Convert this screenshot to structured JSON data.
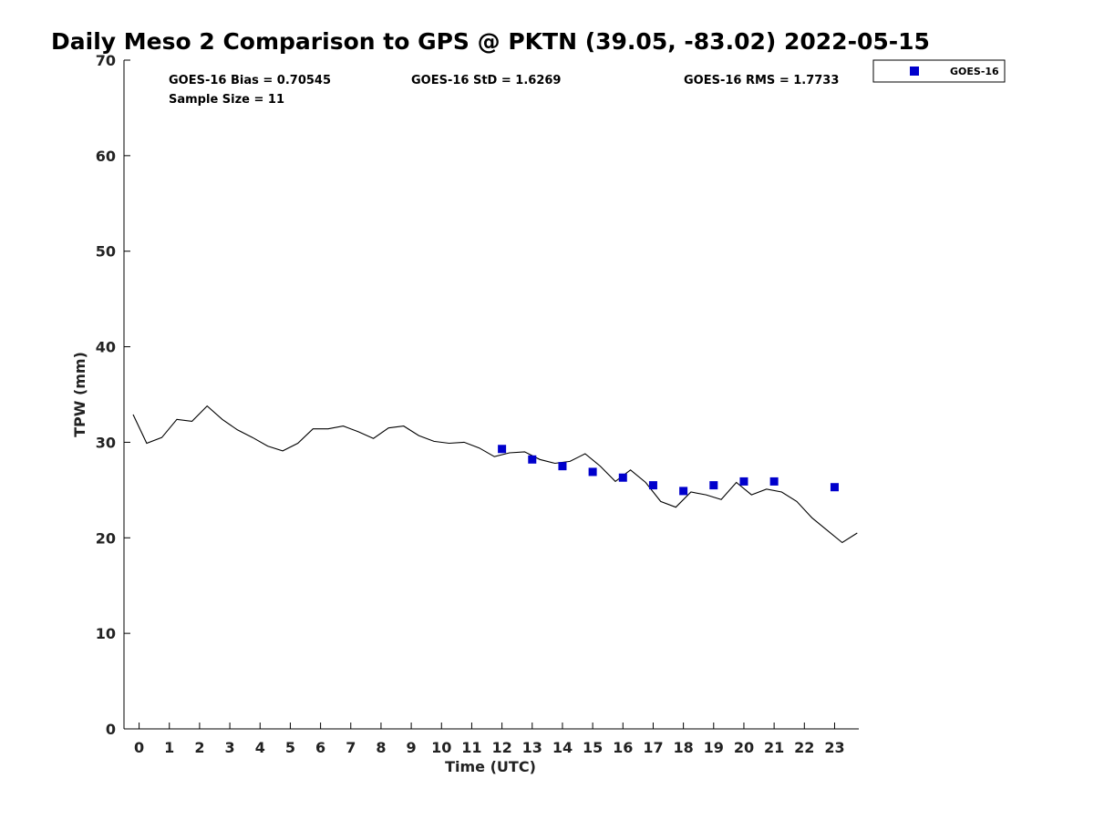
{
  "chart_data": {
    "type": "scatter",
    "title": "Daily Meso 2 Comparison to GPS @ PKTN (39.05, -83.02) 2022-05-15",
    "xlabel": "Time (UTC)",
    "ylabel": "TPW (mm)",
    "xlim": [
      -0.5,
      23.8
    ],
    "ylim": [
      0,
      70
    ],
    "xticks": [
      0,
      1,
      2,
      3,
      4,
      5,
      6,
      7,
      8,
      9,
      10,
      11,
      12,
      13,
      14,
      15,
      16,
      17,
      18,
      19,
      20,
      21,
      22,
      23
    ],
    "yticks": [
      0,
      10,
      20,
      30,
      40,
      50,
      60,
      70
    ],
    "grid": false,
    "legend_position": "top-right",
    "stats": [
      "GOES-16 Bias = 0.70545",
      "GOES-16 StD = 1.6269",
      "GOES-16 RMS = 1.7733",
      "Sample Size = 11"
    ],
    "gps_line": {
      "color": "#000000",
      "x": [
        -0.2,
        0.25,
        0.75,
        1.25,
        1.75,
        2.25,
        2.75,
        3.25,
        3.75,
        4.25,
        4.75,
        5.25,
        5.75,
        6.25,
        6.75,
        7.25,
        7.75,
        8.25,
        8.75,
        9.25,
        9.75,
        10.25,
        10.75,
        11.25,
        11.75,
        12.25,
        12.75,
        13.25,
        13.75,
        14.25,
        14.75,
        15.25,
        15.75,
        16.25,
        16.75,
        17.25,
        17.75,
        18.25,
        18.75,
        19.25,
        19.75,
        20.25,
        20.75,
        21.25,
        21.75,
        22.25,
        22.75,
        23.25,
        23.75
      ],
      "y": [
        32.9,
        29.9,
        30.5,
        32.4,
        32.2,
        33.8,
        32.4,
        31.3,
        30.5,
        29.6,
        29.1,
        29.9,
        31.4,
        31.4,
        31.7,
        31.1,
        30.4,
        31.5,
        31.7,
        30.7,
        30.1,
        29.9,
        30.0,
        29.4,
        28.5,
        28.9,
        29.0,
        28.2,
        27.8,
        28.0,
        28.8,
        27.5,
        25.9,
        27.1,
        25.8,
        23.8,
        23.2,
        24.8,
        24.5,
        24.0,
        25.8,
        24.5,
        25.1,
        24.8,
        23.8,
        22.1,
        20.8,
        19.5,
        20.5
      ]
    },
    "series": [
      {
        "name": "GOES-16",
        "color": "#0000cc",
        "marker": "square",
        "x": [
          12,
          13,
          14,
          15,
          16,
          17,
          18,
          19,
          20,
          21,
          23
        ],
        "y": [
          29.3,
          28.2,
          27.5,
          26.9,
          26.3,
          25.5,
          24.9,
          25.5,
          25.9,
          25.9,
          25.3
        ]
      }
    ]
  }
}
